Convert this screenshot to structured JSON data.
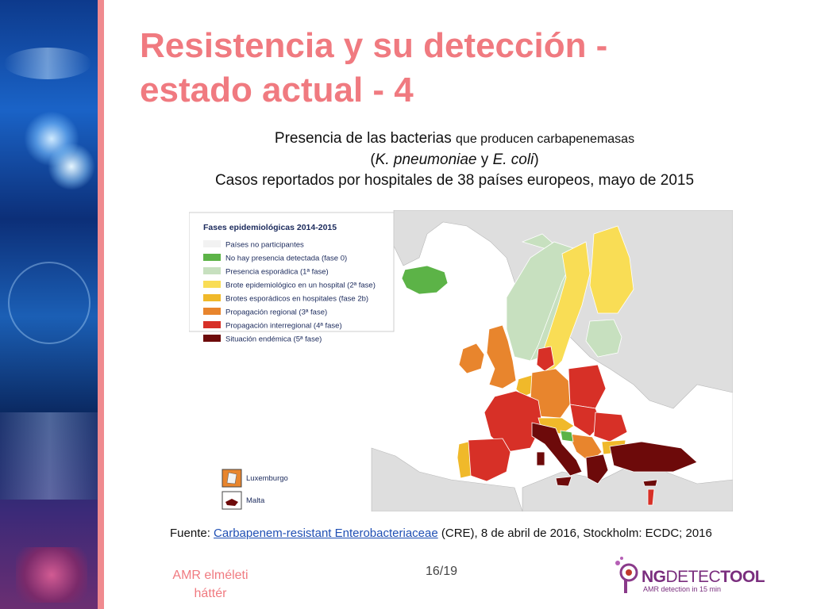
{
  "slide": {
    "title_line1": "Resistencia y su detección -",
    "title_line2": "estado actual - 4",
    "subtitle_line1_a": "Presencia de las bacterias",
    "subtitle_line1_b": "que producen carbapenemasas",
    "subtitle_line2_open": "(",
    "subtitle_line2_sp1": "K. pneumoniae",
    "subtitle_line2_y": " y ",
    "subtitle_line2_sp2": "E. coli",
    "subtitle_line2_close": ")",
    "subtitle_line3": "Casos reportados por hospitales de 38 países europeos, mayo de 2015"
  },
  "legend": {
    "title": "Fases epidemiológicas 2014-2015",
    "items": [
      {
        "label": "Países no participantes",
        "color": "#f2f2f2"
      },
      {
        "label": "No hay presencia detectada (fase 0)",
        "color": "#5cb347"
      },
      {
        "label": "Presencia esporádica (1ª fase)",
        "color": "#c7e0bf"
      },
      {
        "label": "Brote epidemiológico en un hospital (2ª fase)",
        "color": "#f9dd55"
      },
      {
        "label": "Brotes esporádicos en hospitales (fase 2b)",
        "color": "#f0b92a"
      },
      {
        "label": "Propagación regional (3ª fase)",
        "color": "#e8852d"
      },
      {
        "label": "Propagación interregional (4ª fase)",
        "color": "#d73027"
      },
      {
        "label": "Situación endémica (5ª fase)",
        "color": "#6d0a0a"
      }
    ]
  },
  "insets": {
    "luxembourg": "Luxemburgo",
    "malta": "Malta"
  },
  "source": {
    "prefix": "Fuente: ",
    "link_text": "Carbapenem-resistant Enterobacteriaceae",
    "suffix": " (CRE), 8 de abril de 2016, Stockholm: ECDC; 2016"
  },
  "footer": {
    "left_line1": "AMR elméleti",
    "left_line2": "háttér",
    "page": "16/19",
    "logo_strong": "NG",
    "logo_light": "DETEC",
    "logo_strong2": "TOOL",
    "logo_tagline": "AMR detection in 15 min"
  },
  "colors": {
    "title": "#f07a80",
    "accent_bar": "#f08a8f",
    "non_participating": "#dedede",
    "sea": "#ffffff"
  }
}
